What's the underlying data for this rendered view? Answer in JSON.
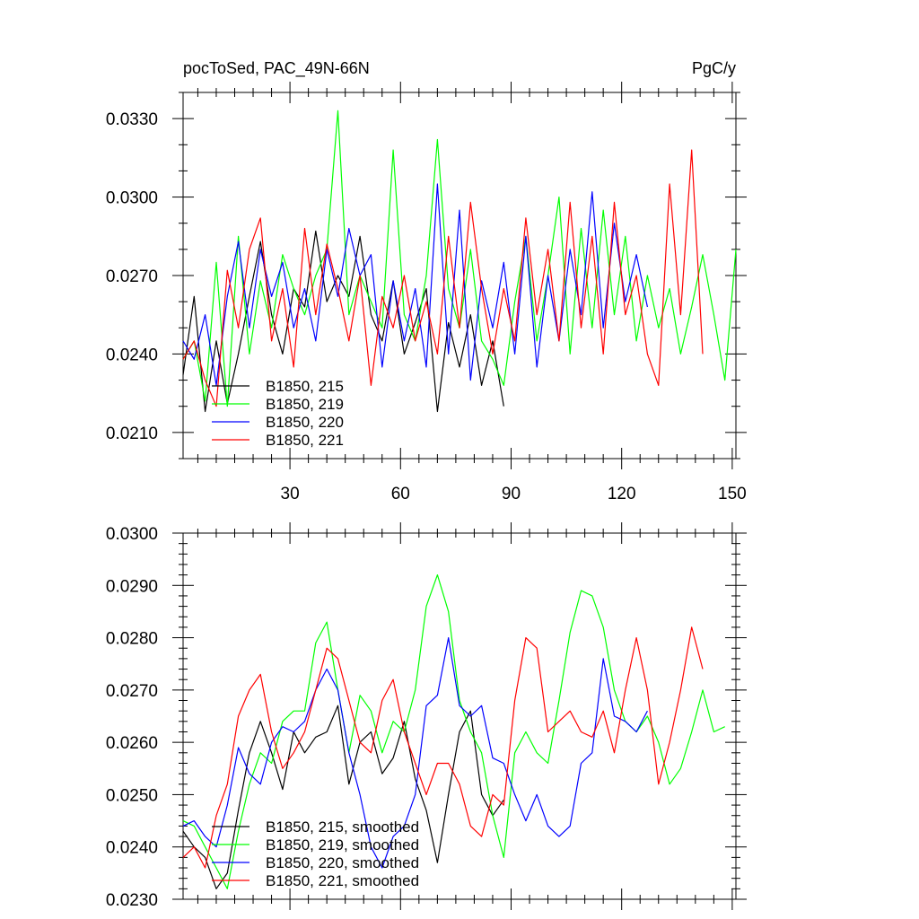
{
  "chart_data": [
    {
      "type": "line",
      "title_left": "pocToSed, PAC_49N-66N",
      "title_right": "PgC/y",
      "xlim": [
        1,
        151
      ],
      "ylim": [
        0.02,
        0.034
      ],
      "xticks": [
        30,
        60,
        90,
        120,
        150
      ],
      "xtick_labels": [
        "30",
        "60",
        "90",
        "120",
        "150"
      ],
      "yticks": [
        0.021,
        0.024,
        0.027,
        0.03,
        0.033
      ],
      "ytick_labels": [
        "0.0210",
        "0.0240",
        "0.0270",
        "0.0300",
        "0.0330"
      ],
      "legend_position": "bottom-left",
      "series": [
        {
          "name": "B1850, 215",
          "color": "#000000",
          "x": [
            1,
            4,
            7,
            10,
            13,
            16,
            19,
            22,
            25,
            28,
            31,
            34,
            37,
            40,
            43,
            46,
            49,
            52,
            55,
            58,
            61,
            64,
            67,
            70,
            73,
            76,
            79,
            82,
            85,
            88
          ],
          "values": [
            0.0232,
            0.0262,
            0.0218,
            0.0245,
            0.0221,
            0.024,
            0.0262,
            0.0283,
            0.0255,
            0.024,
            0.0265,
            0.0258,
            0.0287,
            0.026,
            0.027,
            0.0262,
            0.0285,
            0.0255,
            0.0245,
            0.0268,
            0.024,
            0.0252,
            0.0265,
            0.0218,
            0.0252,
            0.0235,
            0.0255,
            0.0228,
            0.0245,
            0.022
          ]
        },
        {
          "name": "B1850, 219",
          "color": "#00ff00",
          "x": [
            1,
            4,
            7,
            10,
            13,
            16,
            19,
            22,
            25,
            28,
            31,
            34,
            37,
            40,
            43,
            46,
            49,
            52,
            55,
            58,
            61,
            64,
            67,
            70,
            73,
            76,
            79,
            82,
            85,
            88,
            91,
            94,
            97,
            100,
            103,
            106,
            109,
            112,
            115,
            118,
            121,
            124,
            127,
            130,
            133,
            136,
            139,
            142,
            145,
            148,
            151
          ],
          "values": [
            0.0238,
            0.0245,
            0.0222,
            0.0275,
            0.022,
            0.0285,
            0.024,
            0.0268,
            0.025,
            0.0278,
            0.0265,
            0.0255,
            0.027,
            0.028,
            0.0333,
            0.0255,
            0.027,
            0.026,
            0.025,
            0.0318,
            0.0255,
            0.0245,
            0.027,
            0.0322,
            0.0265,
            0.025,
            0.028,
            0.0245,
            0.0238,
            0.0228,
            0.026,
            0.0285,
            0.0245,
            0.027,
            0.03,
            0.024,
            0.0288,
            0.025,
            0.0295,
            0.0255,
            0.0285,
            0.0245,
            0.027,
            0.025,
            0.0265,
            0.024,
            0.0258,
            0.0278,
            0.0255,
            0.023,
            0.028
          ]
        },
        {
          "name": "B1850, 220",
          "color": "#0000ff",
          "x": [
            1,
            4,
            7,
            10,
            13,
            16,
            19,
            22,
            25,
            28,
            31,
            34,
            37,
            40,
            43,
            46,
            49,
            52,
            55,
            58,
            61,
            64,
            67,
            70,
            73,
            76,
            79,
            82,
            85,
            88,
            91,
            94,
            97,
            100,
            103,
            106,
            109,
            112,
            115,
            118,
            121,
            124,
            127
          ],
          "values": [
            0.0245,
            0.0238,
            0.0255,
            0.0228,
            0.0262,
            0.0283,
            0.025,
            0.028,
            0.0262,
            0.0275,
            0.025,
            0.0265,
            0.0245,
            0.028,
            0.0262,
            0.0288,
            0.027,
            0.0278,
            0.0235,
            0.0268,
            0.0245,
            0.0265,
            0.0235,
            0.0305,
            0.024,
            0.0295,
            0.023,
            0.0268,
            0.025,
            0.0275,
            0.024,
            0.0285,
            0.0235,
            0.027,
            0.0245,
            0.028,
            0.0255,
            0.0302,
            0.025,
            0.029,
            0.026,
            0.0278,
            0.0258
          ]
        },
        {
          "name": "B1850, 221",
          "color": "#ff0000",
          "x": [
            1,
            4,
            7,
            10,
            13,
            16,
            19,
            22,
            25,
            28,
            31,
            34,
            37,
            40,
            43,
            46,
            49,
            52,
            55,
            58,
            61,
            64,
            67,
            70,
            73,
            76,
            79,
            82,
            85,
            88,
            91,
            94,
            97,
            100,
            103,
            106,
            109,
            112,
            115,
            118,
            121,
            124,
            127,
            130,
            133,
            136,
            139,
            142
          ],
          "values": [
            0.0238,
            0.0245,
            0.023,
            0.022,
            0.0272,
            0.025,
            0.028,
            0.0292,
            0.0245,
            0.0265,
            0.0235,
            0.0288,
            0.0255,
            0.0282,
            0.0265,
            0.0245,
            0.027,
            0.0228,
            0.0262,
            0.025,
            0.027,
            0.0245,
            0.026,
            0.024,
            0.0285,
            0.025,
            0.0298,
            0.0265,
            0.024,
            0.0265,
            0.0245,
            0.0292,
            0.0255,
            0.028,
            0.0245,
            0.0298,
            0.025,
            0.0285,
            0.024,
            0.0298,
            0.0255,
            0.027,
            0.024,
            0.0228,
            0.0305,
            0.0255,
            0.0318,
            0.024
          ]
        }
      ]
    },
    {
      "type": "line",
      "xlim": [
        1,
        151
      ],
      "ylim": [
        0.023,
        0.03
      ],
      "xticks": [
        30,
        60,
        90,
        120,
        150
      ],
      "yticks": [
        0.023,
        0.024,
        0.025,
        0.026,
        0.027,
        0.028,
        0.029,
        0.03
      ],
      "ytick_labels": [
        "0.0230",
        "0.0240",
        "0.0250",
        "0.0260",
        "0.0270",
        "0.0280",
        "0.0290",
        "0.0300"
      ],
      "legend_position": "bottom-left",
      "series": [
        {
          "name": "B1850, 215, smoothed",
          "color": "#000000",
          "x": [
            1,
            4,
            7,
            10,
            13,
            16,
            19,
            22,
            25,
            28,
            31,
            34,
            37,
            40,
            43,
            46,
            49,
            52,
            55,
            58,
            61,
            64,
            67,
            70,
            73,
            76,
            79,
            82,
            85,
            88
          ],
          "values": [
            0.0243,
            0.024,
            0.0238,
            0.0232,
            0.0235,
            0.0247,
            0.0258,
            0.0264,
            0.0258,
            0.0251,
            0.0262,
            0.0258,
            0.0261,
            0.0262,
            0.0267,
            0.0252,
            0.026,
            0.0262,
            0.0254,
            0.0257,
            0.0264,
            0.0253,
            0.0247,
            0.0237,
            0.025,
            0.0262,
            0.0266,
            0.025,
            0.0246,
            0.0249
          ]
        },
        {
          "name": "B1850, 219, smoothed",
          "color": "#00ff00",
          "x": [
            1,
            4,
            7,
            10,
            13,
            16,
            19,
            22,
            25,
            28,
            31,
            34,
            37,
            40,
            43,
            46,
            49,
            52,
            55,
            58,
            61,
            64,
            67,
            70,
            73,
            76,
            79,
            82,
            85,
            88,
            91,
            94,
            97,
            100,
            103,
            106,
            109,
            112,
            115,
            118,
            121,
            124,
            127,
            130,
            133,
            136,
            139,
            142,
            145,
            148
          ],
          "values": [
            0.0245,
            0.0244,
            0.024,
            0.0236,
            0.0232,
            0.0243,
            0.0252,
            0.0258,
            0.0256,
            0.0264,
            0.0266,
            0.0266,
            0.0279,
            0.0283,
            0.027,
            0.0258,
            0.0269,
            0.0266,
            0.0258,
            0.0264,
            0.0262,
            0.027,
            0.0286,
            0.0292,
            0.0285,
            0.0268,
            0.0262,
            0.0258,
            0.0246,
            0.0238,
            0.0258,
            0.0262,
            0.0258,
            0.0256,
            0.0268,
            0.0281,
            0.0289,
            0.0288,
            0.0282,
            0.027,
            0.0264,
            0.0262,
            0.0265,
            0.026,
            0.0252,
            0.0255,
            0.0262,
            0.027,
            0.0262,
            0.0263
          ]
        },
        {
          "name": "B1850, 220, smoothed",
          "color": "#0000ff",
          "x": [
            1,
            4,
            7,
            10,
            13,
            16,
            19,
            22,
            25,
            28,
            31,
            34,
            37,
            40,
            43,
            46,
            49,
            52,
            55,
            58,
            61,
            64,
            67,
            70,
            73,
            76,
            79,
            82,
            85,
            88,
            91,
            94,
            97,
            100,
            103,
            106,
            109,
            112,
            115,
            118,
            121,
            124,
            127
          ],
          "values": [
            0.0244,
            0.0245,
            0.0242,
            0.024,
            0.0248,
            0.0259,
            0.0254,
            0.0252,
            0.026,
            0.0263,
            0.0262,
            0.0264,
            0.027,
            0.0274,
            0.027,
            0.0258,
            0.025,
            0.024,
            0.0236,
            0.0242,
            0.0244,
            0.025,
            0.0267,
            0.0269,
            0.028,
            0.0267,
            0.0265,
            0.0267,
            0.0257,
            0.0256,
            0.025,
            0.0245,
            0.025,
            0.0244,
            0.0242,
            0.0244,
            0.0256,
            0.0258,
            0.0276,
            0.0265,
            0.0264,
            0.0262,
            0.0266
          ]
        },
        {
          "name": "B1850, 221, smoothed",
          "color": "#ff0000",
          "x": [
            1,
            4,
            7,
            10,
            13,
            16,
            19,
            22,
            25,
            28,
            31,
            34,
            37,
            40,
            43,
            46,
            49,
            52,
            55,
            58,
            61,
            64,
            67,
            70,
            73,
            76,
            79,
            82,
            85,
            88,
            91,
            94,
            97,
            100,
            103,
            106,
            109,
            112,
            115,
            118,
            121,
            124,
            127,
            130,
            133,
            136,
            139,
            142
          ],
          "values": [
            0.0238,
            0.024,
            0.0236,
            0.0246,
            0.0252,
            0.0265,
            0.027,
            0.0273,
            0.0262,
            0.0255,
            0.0258,
            0.0262,
            0.027,
            0.0278,
            0.0276,
            0.0268,
            0.026,
            0.0258,
            0.0268,
            0.0272,
            0.0262,
            0.0256,
            0.025,
            0.0256,
            0.0256,
            0.0252,
            0.0244,
            0.0242,
            0.025,
            0.0248,
            0.0268,
            0.028,
            0.0278,
            0.0262,
            0.0264,
            0.0266,
            0.0262,
            0.0261,
            0.0266,
            0.0258,
            0.027,
            0.028,
            0.027,
            0.0252,
            0.026,
            0.027,
            0.0282,
            0.0274
          ]
        }
      ]
    }
  ]
}
